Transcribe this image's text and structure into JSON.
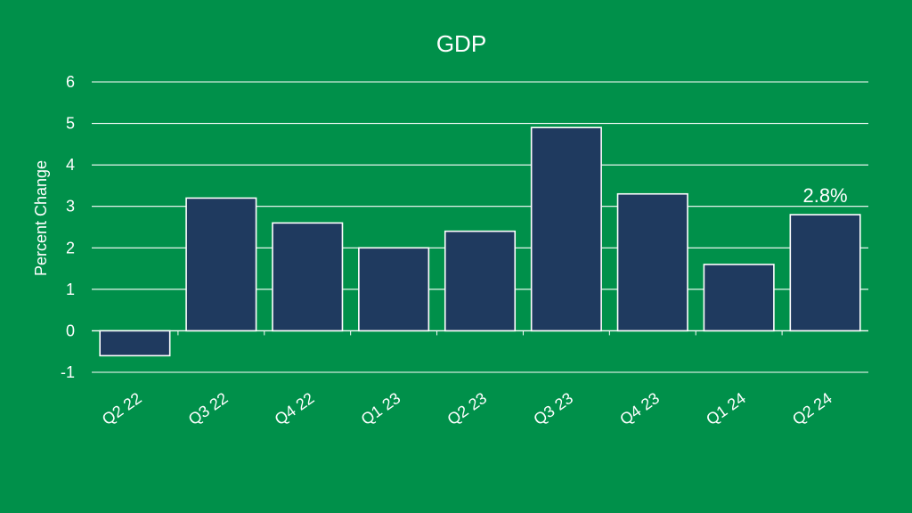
{
  "colors": {
    "background": "#00904a",
    "bar_fill": "#1f3a5f",
    "bar_stroke": "#ffffff",
    "gridline": "#ffffff",
    "text": "#ffffff"
  },
  "chart_data": {
    "type": "bar",
    "title": "GDP",
    "xlabel": "",
    "ylabel": "Percent Change",
    "categories": [
      "Q2 22",
      "Q3 22",
      "Q4 22",
      "Q1 23",
      "Q2 23",
      "Q3 23",
      "Q4 23",
      "Q1 24",
      "Q2 24"
    ],
    "values": [
      -0.6,
      3.2,
      2.6,
      2.0,
      2.4,
      4.9,
      3.3,
      1.6,
      2.8
    ],
    "ylim": [
      -1,
      6
    ],
    "yticks": [
      "-1",
      "0",
      "1",
      "2",
      "3",
      "4",
      "5",
      "6"
    ],
    "grid": true,
    "legend": "none",
    "annotations": [
      {
        "category": "Q2 24",
        "text": "2.8%"
      }
    ]
  }
}
